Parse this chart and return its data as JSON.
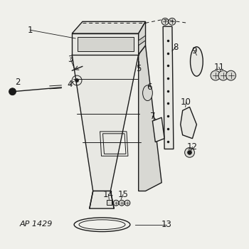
{
  "bg_color": "#f0f0eb",
  "line_color": "#1a1a1a",
  "label_color": "#1a1a1a",
  "ap_label": "AP 1429",
  "fill_light": "#e8e8e3",
  "fill_med": "#d8d8d3"
}
